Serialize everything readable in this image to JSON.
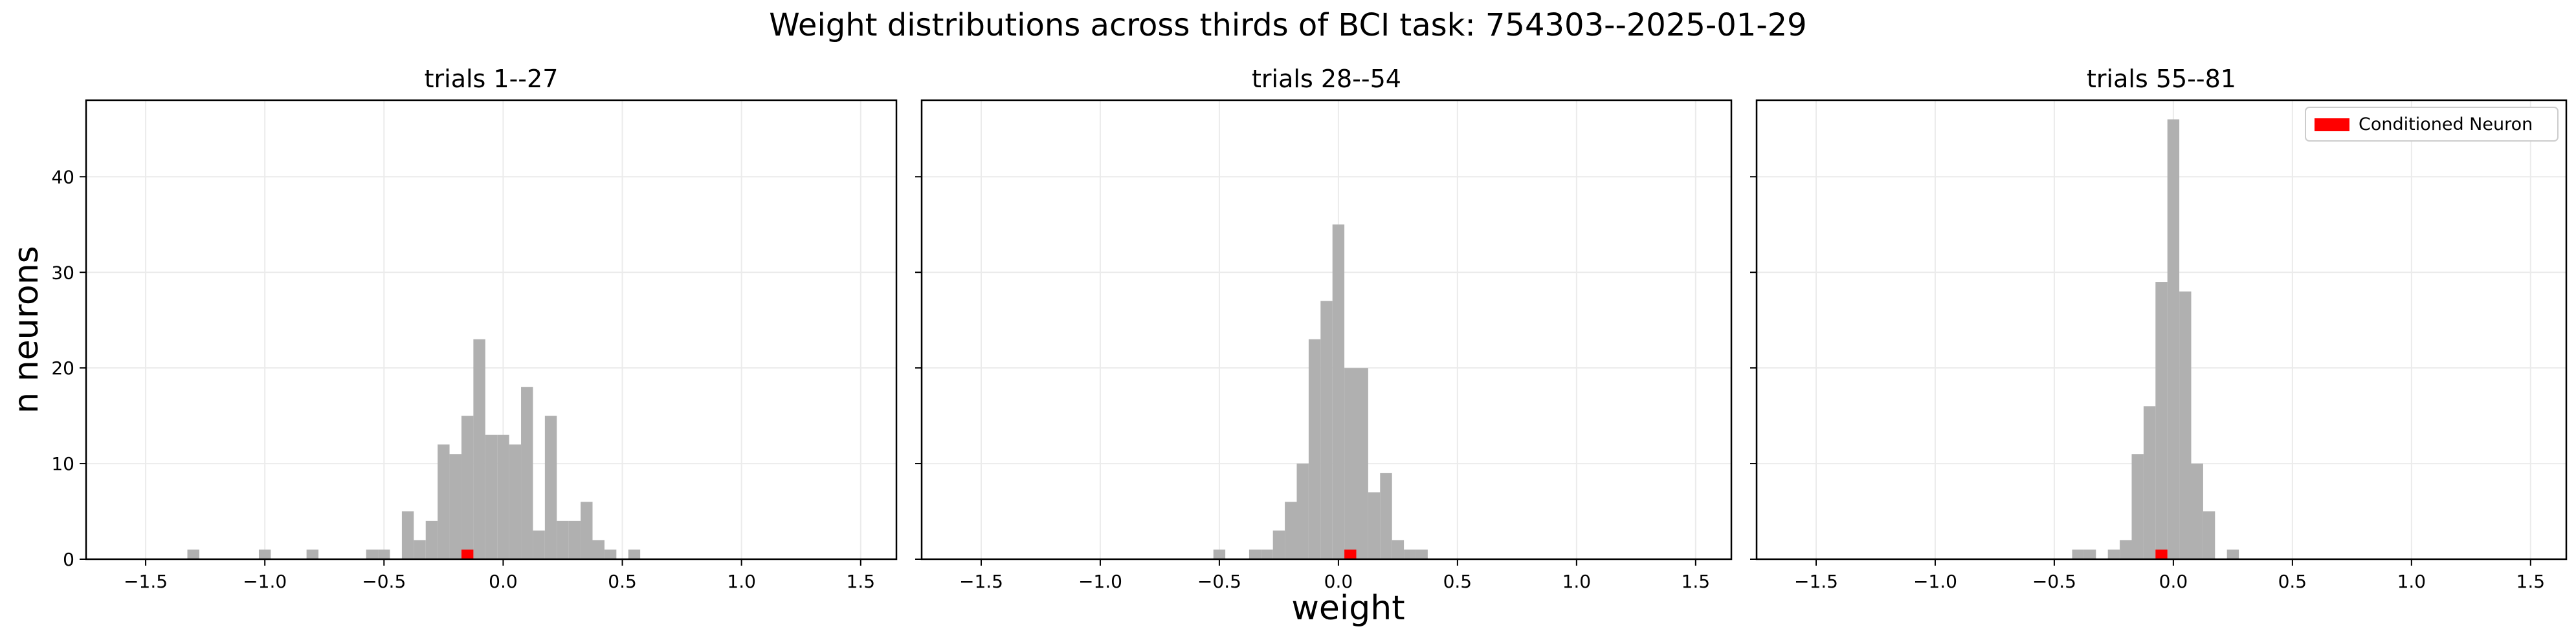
{
  "figure": {
    "title": "Weight distributions across thirds of BCI task: 754303--2025-01-29",
    "xlabel": "weight",
    "ylabel": "n neurons"
  },
  "chart_data": [
    {
      "type": "bar",
      "title": "trials 1--27",
      "xlim": [
        -1.75,
        1.65
      ],
      "ylim": [
        0,
        48
      ],
      "xticks": [
        -1.5,
        -1.0,
        -0.5,
        0.0,
        0.5,
        1.0,
        1.5
      ],
      "xtick_labels": [
        "−1.5",
        "−1.0",
        "−0.5",
        "0.0",
        "0.5",
        "1.0",
        "1.5"
      ],
      "yticks": [
        0,
        10,
        20,
        30,
        40
      ],
      "ytick_labels": [
        "0",
        "10",
        "20",
        "30",
        "40"
      ],
      "grid": true,
      "bin_width": 0.05,
      "bins": [
        {
          "x": -1.3,
          "count": 1
        },
        {
          "x": -1.0,
          "count": 1
        },
        {
          "x": -0.8,
          "count": 1
        },
        {
          "x": -0.55,
          "count": 1
        },
        {
          "x": -0.5,
          "count": 1
        },
        {
          "x": -0.4,
          "count": 5
        },
        {
          "x": -0.35,
          "count": 2
        },
        {
          "x": -0.3,
          "count": 4
        },
        {
          "x": -0.25,
          "count": 12
        },
        {
          "x": -0.2,
          "count": 11
        },
        {
          "x": -0.15,
          "count": 15
        },
        {
          "x": -0.1,
          "count": 23
        },
        {
          "x": -0.05,
          "count": 13
        },
        {
          "x": 0.0,
          "count": 13
        },
        {
          "x": 0.05,
          "count": 12
        },
        {
          "x": 0.1,
          "count": 18
        },
        {
          "x": 0.15,
          "count": 3
        },
        {
          "x": 0.2,
          "count": 15
        },
        {
          "x": 0.25,
          "count": 4
        },
        {
          "x": 0.3,
          "count": 4
        },
        {
          "x": 0.35,
          "count": 6
        },
        {
          "x": 0.4,
          "count": 2
        },
        {
          "x": 0.45,
          "count": 1
        },
        {
          "x": 0.55,
          "count": 1
        }
      ],
      "conditioned_neuron": {
        "x": -0.15,
        "count": 1
      }
    },
    {
      "type": "bar",
      "title": "trials 28--54",
      "xlim": [
        -1.75,
        1.65
      ],
      "ylim": [
        0,
        48
      ],
      "xticks": [
        -1.5,
        -1.0,
        -0.5,
        0.0,
        0.5,
        1.0,
        1.5
      ],
      "xtick_labels": [
        "−1.5",
        "−1.0",
        "−0.5",
        "0.0",
        "0.5",
        "1.0",
        "1.5"
      ],
      "grid": true,
      "bin_width": 0.05,
      "bins": [
        {
          "x": -0.5,
          "count": 1
        },
        {
          "x": -0.35,
          "count": 1
        },
        {
          "x": -0.3,
          "count": 1
        },
        {
          "x": -0.25,
          "count": 3
        },
        {
          "x": -0.2,
          "count": 6
        },
        {
          "x": -0.15,
          "count": 10
        },
        {
          "x": -0.1,
          "count": 23
        },
        {
          "x": -0.05,
          "count": 27
        },
        {
          "x": 0.0,
          "count": 35
        },
        {
          "x": 0.05,
          "count": 20
        },
        {
          "x": 0.1,
          "count": 20
        },
        {
          "x": 0.15,
          "count": 7
        },
        {
          "x": 0.2,
          "count": 9
        },
        {
          "x": 0.25,
          "count": 2
        },
        {
          "x": 0.3,
          "count": 1
        },
        {
          "x": 0.35,
          "count": 1
        }
      ],
      "conditioned_neuron": {
        "x": 0.05,
        "count": 1
      }
    },
    {
      "type": "bar",
      "title": "trials 55--81",
      "xlim": [
        -1.75,
        1.65
      ],
      "ylim": [
        0,
        48
      ],
      "xticks": [
        -1.5,
        -1.0,
        -0.5,
        0.0,
        0.5,
        1.0,
        1.5
      ],
      "xtick_labels": [
        "−1.5",
        "−1.0",
        "−0.5",
        "0.0",
        "0.5",
        "1.0",
        "1.5"
      ],
      "grid": true,
      "bin_width": 0.05,
      "bins": [
        {
          "x": -0.4,
          "count": 1
        },
        {
          "x": -0.35,
          "count": 1
        },
        {
          "x": -0.25,
          "count": 1
        },
        {
          "x": -0.2,
          "count": 2
        },
        {
          "x": -0.15,
          "count": 11
        },
        {
          "x": -0.1,
          "count": 16
        },
        {
          "x": -0.05,
          "count": 29
        },
        {
          "x": 0.0,
          "count": 46
        },
        {
          "x": 0.05,
          "count": 28
        },
        {
          "x": 0.1,
          "count": 10
        },
        {
          "x": 0.15,
          "count": 5
        },
        {
          "x": 0.25,
          "count": 1
        }
      ],
      "conditioned_neuron": {
        "x": -0.05,
        "count": 1
      },
      "legend": {
        "label": "Conditioned Neuron",
        "color": "#ff0000",
        "placement": "top-right"
      }
    }
  ],
  "colors": {
    "bars": "#b0b0b0",
    "conditioned": "#ff0000",
    "grid": "#ebebeb"
  }
}
